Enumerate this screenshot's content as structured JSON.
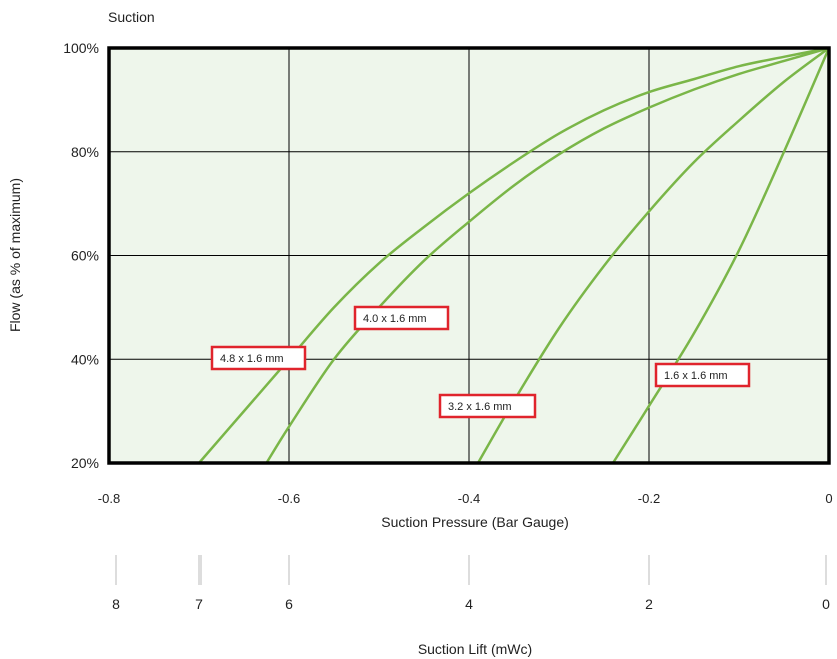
{
  "chart_data": {
    "type": "line",
    "title": "Suction",
    "xlabel": "Suction Pressure (Bar Gauge)",
    "ylabel": "Flow (as % of maximum)",
    "xlim": [
      -0.8,
      0
    ],
    "ylim": [
      20,
      100
    ],
    "x_ticks": [
      -0.8,
      -0.6,
      -0.4,
      -0.2,
      0
    ],
    "x_tick_labels": [
      "-0.8",
      "-0.6",
      "-0.4",
      "-0.2",
      "0"
    ],
    "y_ticks": [
      20,
      40,
      60,
      80,
      100
    ],
    "y_tick_labels": [
      "20%",
      "40%",
      "60%",
      "80%",
      "100%"
    ],
    "grid": true,
    "secondary_axis": {
      "label": "Suction Lift (mWc)",
      "tick_labels": [
        "8",
        "7",
        "6",
        "4",
        "2",
        "0"
      ],
      "tick_pressures": [
        -0.8,
        -0.7,
        -0.6,
        -0.4,
        -0.2,
        0
      ]
    },
    "series": [
      {
        "name": "4.8 x 1.6 mm",
        "x": [
          -0.7,
          -0.65,
          -0.6,
          -0.55,
          -0.5,
          -0.45,
          -0.4,
          -0.35,
          -0.3,
          -0.25,
          -0.2,
          -0.15,
          -0.1,
          -0.05,
          0
        ],
        "y": [
          20,
          30,
          40,
          50,
          58.5,
          65.5,
          72,
          78,
          83.5,
          88,
          91.5,
          94,
          96.5,
          98.3,
          100
        ]
      },
      {
        "name": "4.0 x 1.6 mm",
        "x": [
          -0.625,
          -0.6,
          -0.55,
          -0.5,
          -0.45,
          -0.4,
          -0.35,
          -0.3,
          -0.25,
          -0.2,
          -0.15,
          -0.1,
          -0.05,
          0
        ],
        "y": [
          20,
          27,
          40,
          50,
          59,
          66.5,
          73.5,
          79.5,
          84.5,
          88.5,
          92,
          95,
          97.5,
          100
        ]
      },
      {
        "name": "3.2 x 1.6 mm",
        "x": [
          -0.39,
          -0.35,
          -0.3,
          -0.25,
          -0.2,
          -0.15,
          -0.1,
          -0.05,
          0
        ],
        "y": [
          20,
          32,
          46,
          58,
          68.5,
          78,
          86,
          93.5,
          100
        ]
      },
      {
        "name": "1.6 x 1.6 mm",
        "x": [
          -0.24,
          -0.2,
          -0.15,
          -0.1,
          -0.05,
          0
        ],
        "y": [
          20,
          31,
          45,
          61,
          80,
          100
        ]
      }
    ],
    "annotations": [
      {
        "text": "4.8 x 1.6 mm",
        "series": 0
      },
      {
        "text": "4.0 x 1.6 mm",
        "series": 1
      },
      {
        "text": "3.2 x 1.6 mm",
        "series": 2
      },
      {
        "text": "1.6 x 1.6 mm",
        "series": 3
      }
    ],
    "colors": {
      "line": "#7ab648",
      "plot_background": "#eef6eb",
      "frame": "#000000",
      "grid": "#000000",
      "label_border": "#e0242c"
    }
  }
}
